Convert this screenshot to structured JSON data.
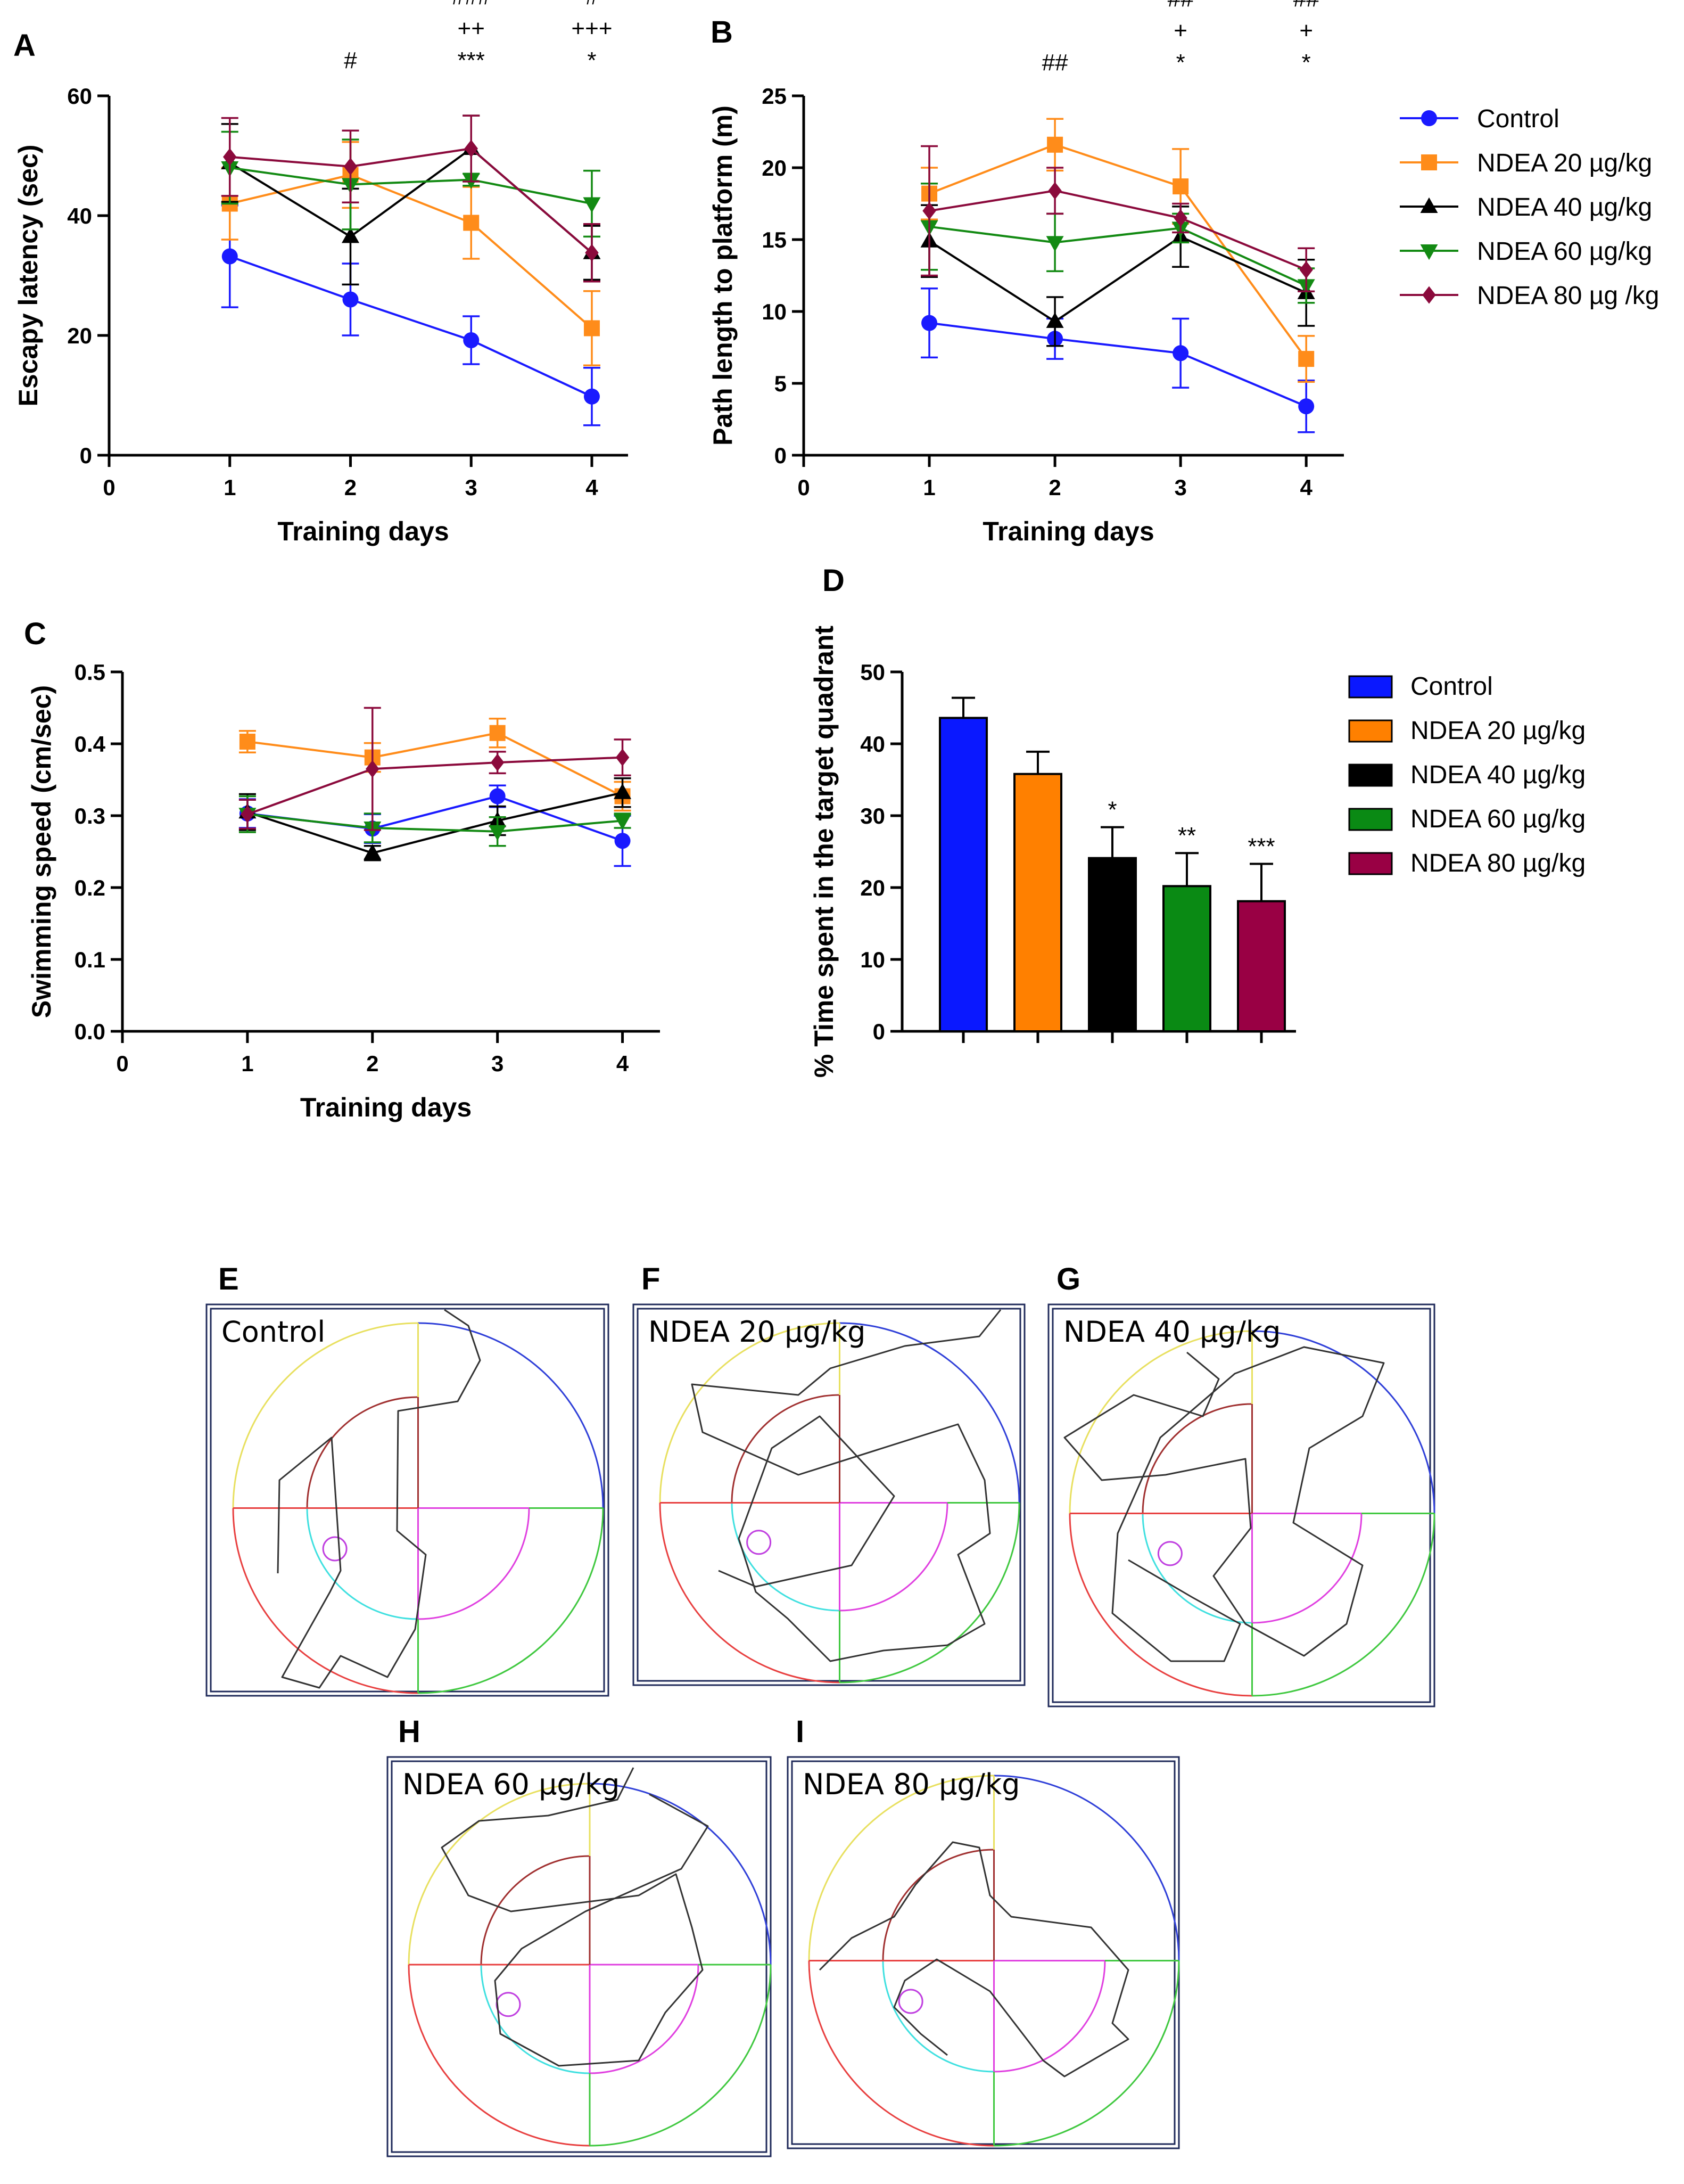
{
  "legend_labels": [
    "Control",
    "NDEA 20 µg/kg",
    "NDEA 40 µg/kg",
    "NDEA 60 µg/kg",
    "NDEA 80 µg /kg"
  ],
  "legend_labels_d": [
    "Control",
    "NDEA 20 µg/kg",
    "NDEA 40 µg/kg",
    "NDEA 60 µg/kg",
    "NDEA 80 µg/kg"
  ],
  "colors": {
    "control": "#1a1aff",
    "ndea20": "#ff8c1a",
    "ndea40": "#000000",
    "ndea60": "#138a13",
    "ndea80": "#8b0a3c",
    "bar_control": "#0a18ff",
    "bar_ndea20": "#ff8000",
    "bar_ndea40": "#000000",
    "bar_ndea60": "#0a8a14",
    "bar_ndea80": "#990044"
  },
  "chart_data": [
    {
      "id": "A",
      "type": "line",
      "panel_letter": "A",
      "xlabel": "Training days",
      "ylabel": "Escapy latency (sec)",
      "xlim": [
        0,
        4.3
      ],
      "ylim": [
        0,
        60
      ],
      "xticks": [
        "0",
        "1",
        "2",
        "3",
        "4"
      ],
      "yticks": [
        "0",
        "20",
        "40",
        "60"
      ],
      "x": [
        1,
        2,
        3,
        4
      ],
      "series": [
        {
          "name": "Control",
          "values": [
            33.2,
            26.0,
            19.2,
            9.8
          ],
          "errors": [
            8.5,
            6.0,
            4.0,
            4.8
          ]
        },
        {
          "name": "NDEA 20 µg/kg",
          "values": [
            42.0,
            46.8,
            38.8,
            21.2
          ],
          "errors": [
            6.0,
            5.5,
            6.0,
            6.2
          ]
        },
        {
          "name": "NDEA 40 µg/kg",
          "values": [
            48.8,
            36.5,
            51.2,
            33.8
          ],
          "errors": [
            6.5,
            8.0,
            5.5,
            4.5
          ]
        },
        {
          "name": "NDEA 60 µg/kg",
          "values": [
            48.0,
            45.2,
            46.0,
            42.0
          ],
          "errors": [
            6.0,
            7.5,
            1.0,
            5.5
          ]
        },
        {
          "name": "NDEA 80 µg /kg",
          "values": [
            49.8,
            48.2,
            51.2,
            33.8
          ],
          "errors": [
            6.5,
            6.0,
            5.5,
            4.8
          ]
        }
      ],
      "annotations": [
        {
          "x": 2,
          "lines": [
            "#"
          ]
        },
        {
          "x": 3,
          "lines": [
            "###",
            "++",
            "***"
          ]
        },
        {
          "x": 4,
          "lines": [
            "#",
            "+++",
            "*"
          ]
        }
      ]
    },
    {
      "id": "B",
      "type": "line",
      "panel_letter": "B",
      "xlabel": "Training days",
      "ylabel": "Path length to platform (m)",
      "xlim": [
        0,
        4.3
      ],
      "ylim": [
        0,
        25
      ],
      "xticks": [
        "0",
        "1",
        "2",
        "3",
        "4"
      ],
      "yticks": [
        "0",
        "5",
        "10",
        "15",
        "20",
        "25"
      ],
      "x": [
        1,
        2,
        3,
        4
      ],
      "series": [
        {
          "name": "Control",
          "values": [
            9.2,
            8.1,
            7.1,
            3.4
          ],
          "errors": [
            2.4,
            1.4,
            2.4,
            1.8
          ]
        },
        {
          "name": "NDEA 20 µg/kg",
          "values": [
            18.2,
            21.6,
            18.7,
            6.7
          ],
          "errors": [
            1.8,
            1.8,
            2.6,
            1.6
          ]
        },
        {
          "name": "NDEA 40 µg/kg",
          "values": [
            14.9,
            9.3,
            15.2,
            11.3
          ],
          "errors": [
            2.5,
            1.7,
            2.1,
            2.3
          ]
        },
        {
          "name": "NDEA 60 µg/kg",
          "values": [
            15.9,
            14.8,
            15.8,
            11.8
          ],
          "errors": [
            3.0,
            2.0,
            1.0,
            1.2
          ]
        },
        {
          "name": "NDEA 80 µg /kg",
          "values": [
            17.0,
            18.4,
            16.5,
            12.9
          ],
          "errors": [
            4.5,
            1.6,
            1.0,
            1.5
          ]
        }
      ],
      "annotations": [
        {
          "x": 2,
          "lines": [
            "##"
          ]
        },
        {
          "x": 3,
          "lines": [
            "##",
            "+",
            "*"
          ]
        },
        {
          "x": 4,
          "lines": [
            "##",
            "+",
            "*"
          ]
        }
      ]
    },
    {
      "id": "C",
      "type": "line",
      "panel_letter": "C",
      "xlabel": "Training days",
      "ylabel": "Swimming speed  (cm/sec)",
      "xlim": [
        0,
        4.3
      ],
      "ylim": [
        0,
        0.5
      ],
      "xticks": [
        "0",
        "1",
        "2",
        "3",
        "4"
      ],
      "yticks": [
        "0.0",
        "0.1",
        "0.2",
        "0.3",
        "0.4",
        "0.5"
      ],
      "x": [
        1,
        2,
        3,
        4
      ],
      "series": [
        {
          "name": "Control",
          "values": [
            0.303,
            0.282,
            0.327,
            0.265
          ],
          "errors": [
            0.02,
            0.02,
            0.015,
            0.035
          ]
        },
        {
          "name": "NDEA 20 µg/kg",
          "values": [
            0.403,
            0.381,
            0.415,
            0.327
          ],
          "errors": [
            0.015,
            0.02,
            0.02,
            0.02
          ]
        },
        {
          "name": "NDEA 40 µg/kg",
          "values": [
            0.305,
            0.248,
            0.293,
            0.332
          ],
          "errors": [
            0.025,
            0.01,
            0.02,
            0.02
          ]
        },
        {
          "name": "NDEA 60 µg/kg",
          "values": [
            0.302,
            0.283,
            0.278,
            0.293
          ],
          "errors": [
            0.025,
            0.02,
            0.02,
            0.01
          ]
        },
        {
          "name": "NDEA 80 µg /kg",
          "values": [
            0.302,
            0.365,
            0.374,
            0.381
          ],
          "errors": [
            0.02,
            0.085,
            0.015,
            0.025
          ]
        }
      ]
    },
    {
      "id": "D",
      "type": "bar",
      "panel_letter": "D",
      "xlabel": "",
      "ylabel": "% Time spent in the target quadrant",
      "ylim": [
        0,
        50
      ],
      "yticks": [
        "0",
        "10",
        "20",
        "30",
        "40",
        "50"
      ],
      "categories": [
        "Control",
        "NDEA 20 µg/kg",
        "NDEA 40 µg/kg",
        "NDEA 60 µg/kg",
        "NDEA 80 µg/kg"
      ],
      "values": [
        43.6,
        35.8,
        24.1,
        20.2,
        18.1
      ],
      "errors": [
        2.8,
        3.1,
        4.3,
        4.6,
        5.2
      ],
      "significance": [
        "",
        "",
        "*",
        "**",
        "***"
      ]
    }
  ],
  "track_panels": [
    {
      "letter": "E",
      "label": "Control"
    },
    {
      "letter": "F",
      "label": "NDEA 20 µg/kg"
    },
    {
      "letter": "G",
      "label": "NDEA 40 µg/kg"
    },
    {
      "letter": "H",
      "label": "NDEA 60 µg/kg"
    },
    {
      "letter": "I",
      "label": "NDEA 80 µg/kg"
    }
  ]
}
